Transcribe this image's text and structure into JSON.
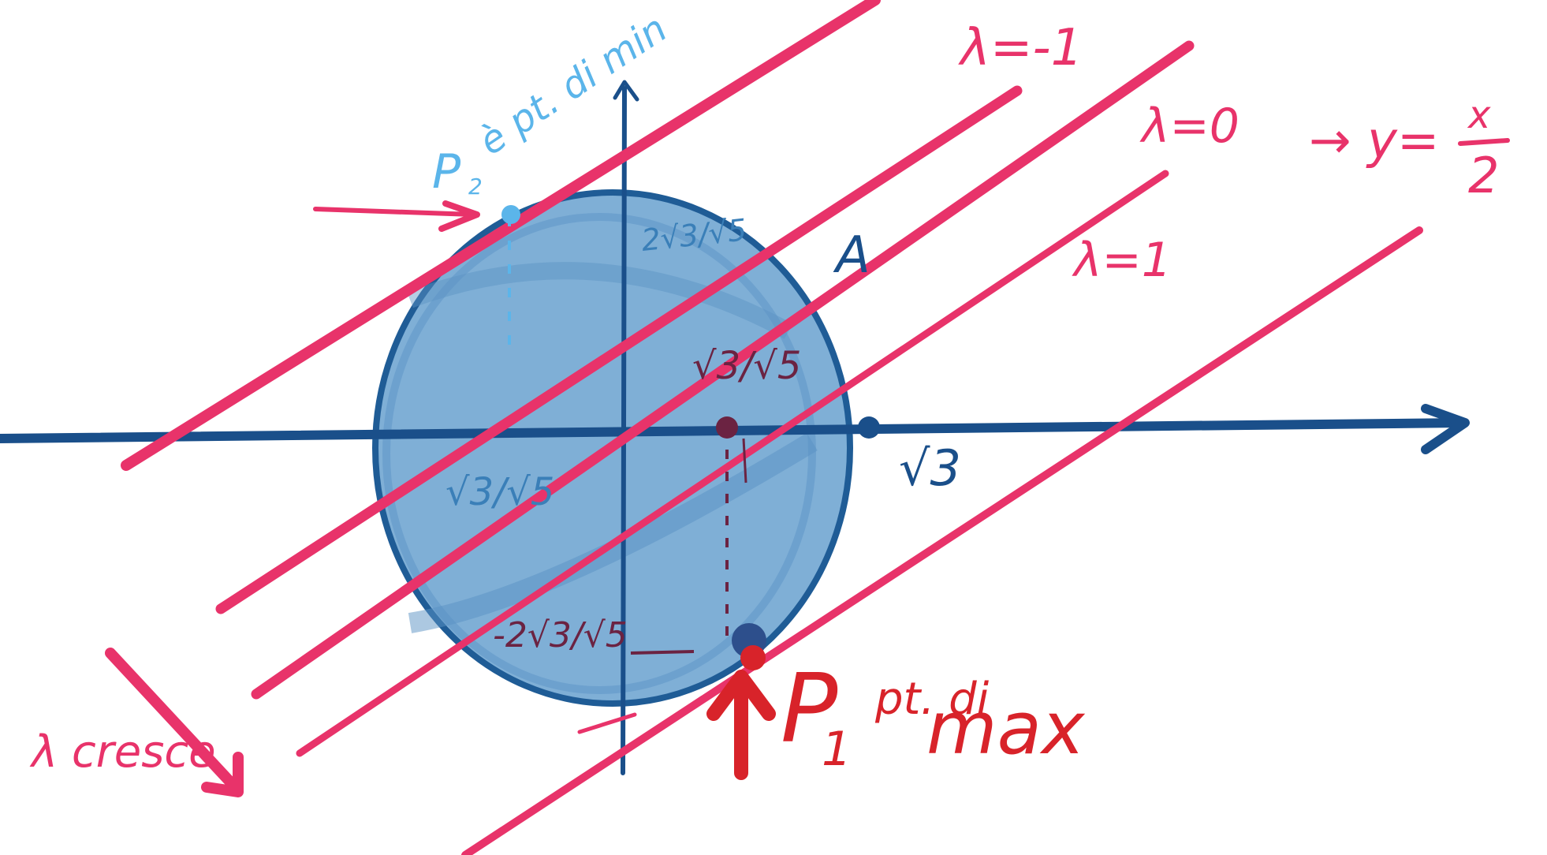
{
  "colors": {
    "axis": "#1a4f8a",
    "disk_fill": "#7fafd6",
    "disk_edge": "#1f5c96",
    "lines": "#e8336a",
    "label_pink": "#e8336a",
    "label_lightblue": "#5bb5ea",
    "label_maroon": "#6b2342",
    "label_red": "#d8232a",
    "label_blue": "#3a7fb8"
  },
  "labels": {
    "p2_letter": "P",
    "p2_sub": "2",
    "p2_text": "è pt. di min",
    "lambda_m1": "λ=-1",
    "lambda_0": "λ=0",
    "lambda_1": "λ=1",
    "line_eq_arrow": "→ y=",
    "line_eq_num": "x",
    "line_eq_den": "2",
    "point_a": "A",
    "top_tick": "2√3/√5",
    "upper_mid": "√3/√5",
    "lower_left": "√3/√5",
    "bottom_tick": "-2√3/√5",
    "x_tick": "√3",
    "p1_letter": "P",
    "p1_sub": "1",
    "p1_text_small": "pt. di",
    "p1_text_big": "max",
    "lambda_grows": "λ cresce"
  },
  "icons": {
    "x_axis": "arrow-right-icon",
    "y_axis": "arrow-up-icon",
    "lambda_arrow": "arrow-down-right-icon",
    "p1_arrow": "arrow-up-icon",
    "p2_arrow": "arrow-right-icon"
  }
}
